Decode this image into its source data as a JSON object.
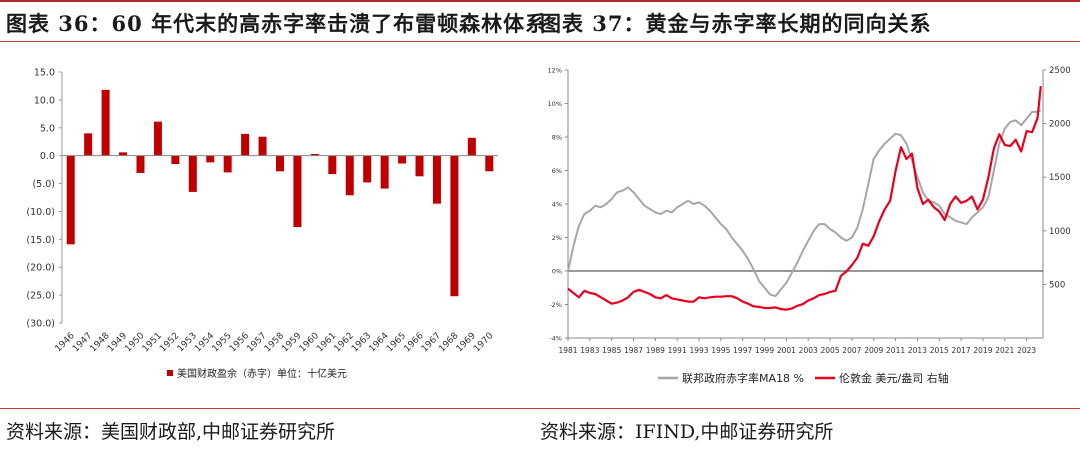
{
  "left": {
    "title": "图表 36：60 年代末的高赤字率击溃了布雷顿森林体系",
    "source": "资料来源：美国财政部,中邮证券研究所"
  },
  "right": {
    "title": "图表 37：黄金与赤字率长期的同向关系",
    "source": "资料来源：IFIND,中邮证券研究所"
  },
  "colors": {
    "accent_red": "#c00000",
    "title_red": "#c63a3a",
    "series_grey": "#a6a6a6"
  },
  "chart_data": [
    {
      "type": "bar",
      "title": "",
      "xlabel": "",
      "ylabel": "",
      "ylim": [
        -30,
        15
      ],
      "yticks": [
        "15.0",
        "10.0",
        "5.0",
        "0.0",
        "(5.0)",
        "(10.0)",
        "(15.0)",
        "(20.0)",
        "(25.0)",
        "(30.0)"
      ],
      "ytick_values": [
        15,
        10,
        5,
        0,
        -5,
        -10,
        -15,
        -20,
        -25,
        -30
      ],
      "categories": [
        "1946",
        "1947",
        "1948",
        "1949",
        "1950",
        "1951",
        "1952",
        "1953",
        "1954",
        "1955",
        "1956",
        "1957",
        "1958",
        "1959",
        "1960",
        "1961",
        "1962",
        "1963",
        "1964",
        "1965",
        "1966",
        "1967",
        "1968",
        "1969",
        "1970"
      ],
      "series": [
        {
          "name": "美国财政盈余（赤字）单位：十亿美元",
          "color": "#c00000",
          "values": [
            -15.9,
            4.0,
            11.8,
            0.6,
            -3.1,
            6.1,
            -1.5,
            -6.5,
            -1.2,
            -3.0,
            3.9,
            3.4,
            -2.8,
            -12.8,
            0.3,
            -3.3,
            -7.1,
            -4.8,
            -5.9,
            -1.4,
            -3.7,
            -8.6,
            -25.2,
            3.2,
            -2.8
          ]
        }
      ],
      "legend": "bottom"
    },
    {
      "type": "line",
      "title": "",
      "xlabel": "",
      "ylabel": "",
      "x_ticks": [
        "1981",
        "1983",
        "1985",
        "1987",
        "1989",
        "1991",
        "1993",
        "1995",
        "1997",
        "1999",
        "2001",
        "2003",
        "2005",
        "2007",
        "2009",
        "2011",
        "2013",
        "2015",
        "2017",
        "2019",
        "2021",
        "2023"
      ],
      "x_range": [
        1981,
        2024.5
      ],
      "y_left": {
        "range": [
          -4,
          12
        ],
        "ticks": [
          "12%",
          "10%",
          "8%",
          "6%",
          "4%",
          "2%",
          "0%",
          "-2%",
          "-4%"
        ],
        "tick_values": [
          12,
          10,
          8,
          6,
          4,
          2,
          0,
          -2,
          -4
        ]
      },
      "y_right": {
        "range": [
          0,
          2500
        ],
        "ticks": [
          "2500",
          "2000",
          "1500",
          "1000",
          "500"
        ],
        "tick_values": [
          2500,
          2000,
          1500,
          1000,
          500
        ]
      },
      "series": [
        {
          "name": "联邦政府赤字率MA18 %",
          "axis": "left",
          "color": "#a6a6a6",
          "x": [
            1981,
            1981.5,
            1982,
            1982.5,
            1983,
            1983.5,
            1984,
            1984.5,
            1985,
            1985.5,
            1986,
            1986.5,
            1987,
            1987.5,
            1988,
            1988.5,
            1989,
            1989.5,
            1990,
            1990.5,
            1991,
            1991.5,
            1992,
            1992.5,
            1993,
            1993.5,
            1994,
            1994.5,
            1995,
            1995.5,
            1996,
            1996.5,
            1997,
            1997.5,
            1998,
            1998.5,
            1999,
            1999.5,
            2000,
            2000.5,
            2001,
            2001.5,
            2002,
            2002.5,
            2003,
            2003.5,
            2004,
            2004.5,
            2005,
            2005.5,
            2006,
            2006.5,
            2007,
            2007.5,
            2008,
            2008.5,
            2009,
            2009.5,
            2010,
            2010.5,
            2011,
            2011.5,
            2012,
            2012.5,
            2013,
            2013.5,
            2014,
            2014.5,
            2015,
            2015.5,
            2016,
            2016.5,
            2017,
            2017.5,
            2018,
            2018.5,
            2019,
            2019.5,
            2020,
            2020.5,
            2021,
            2021.5,
            2022,
            2022.5,
            2023,
            2023.5,
            2024,
            2024.3
          ],
          "values": [
            0.0,
            1.5,
            2.7,
            3.4,
            3.6,
            3.9,
            3.8,
            4.0,
            4.3,
            4.7,
            4.8,
            5.0,
            4.7,
            4.3,
            3.9,
            3.7,
            3.5,
            3.4,
            3.6,
            3.5,
            3.8,
            4.0,
            4.2,
            4.0,
            4.1,
            3.9,
            3.6,
            3.2,
            2.8,
            2.5,
            2.0,
            1.6,
            1.2,
            0.7,
            0.1,
            -0.6,
            -1.0,
            -1.4,
            -1.5,
            -1.1,
            -0.7,
            -0.1,
            0.5,
            1.2,
            1.8,
            2.4,
            2.8,
            2.8,
            2.5,
            2.3,
            2.0,
            1.8,
            2.0,
            2.6,
            3.7,
            5.2,
            6.7,
            7.2,
            7.6,
            7.9,
            8.2,
            8.1,
            7.6,
            6.6,
            5.6,
            4.7,
            4.2,
            4.1,
            3.9,
            3.4,
            3.2,
            3.0,
            2.9,
            2.8,
            3.2,
            3.5,
            3.8,
            4.4,
            6.0,
            7.6,
            8.5,
            8.9,
            9.0,
            8.7,
            9.1,
            9.5,
            9.5,
            9.6
          ]
        },
        {
          "name": "伦敦金 美元/盎司 右轴",
          "axis": "right",
          "color": "#e8001c",
          "x": [
            1981,
            1981.5,
            1982,
            1982.5,
            1983,
            1983.5,
            1984,
            1984.5,
            1985,
            1985.5,
            1986,
            1986.5,
            1987,
            1987.5,
            1988,
            1988.5,
            1989,
            1989.5,
            1990,
            1990.5,
            1991,
            1991.5,
            1992,
            1992.5,
            1993,
            1993.5,
            1994,
            1994.5,
            1995,
            1995.5,
            1996,
            1996.5,
            1997,
            1997.5,
            1998,
            1998.5,
            1999,
            1999.5,
            2000,
            2000.5,
            2001,
            2001.5,
            2002,
            2002.5,
            2003,
            2003.5,
            2004,
            2004.5,
            2005,
            2005.5,
            2006,
            2006.5,
            2007,
            2007.5,
            2008,
            2008.5,
            2009,
            2009.5,
            2010,
            2010.5,
            2011,
            2011.5,
            2012,
            2012.5,
            2013,
            2013.5,
            2014,
            2014.5,
            2015,
            2015.5,
            2016,
            2016.5,
            2017,
            2017.5,
            2018,
            2018.5,
            2019,
            2019.5,
            2020,
            2020.5,
            2021,
            2021.5,
            2022,
            2022.5,
            2023,
            2023.5,
            2024,
            2024.3
          ],
          "values": [
            460,
            420,
            380,
            440,
            420,
            410,
            380,
            350,
            320,
            330,
            350,
            380,
            430,
            450,
            430,
            410,
            380,
            370,
            400,
            370,
            360,
            350,
            340,
            340,
            380,
            370,
            380,
            385,
            385,
            390,
            390,
            370,
            340,
            320,
            295,
            290,
            280,
            280,
            285,
            270,
            265,
            275,
            300,
            315,
            350,
            370,
            400,
            410,
            430,
            440,
            580,
            620,
            680,
            750,
            880,
            860,
            950,
            1090,
            1200,
            1280,
            1560,
            1780,
            1670,
            1720,
            1400,
            1250,
            1290,
            1220,
            1180,
            1100,
            1250,
            1320,
            1260,
            1280,
            1320,
            1200,
            1290,
            1500,
            1770,
            1900,
            1800,
            1790,
            1850,
            1740,
            1930,
            1920,
            2050,
            2350
          ]
        }
      ],
      "legend": "bottom"
    }
  ]
}
